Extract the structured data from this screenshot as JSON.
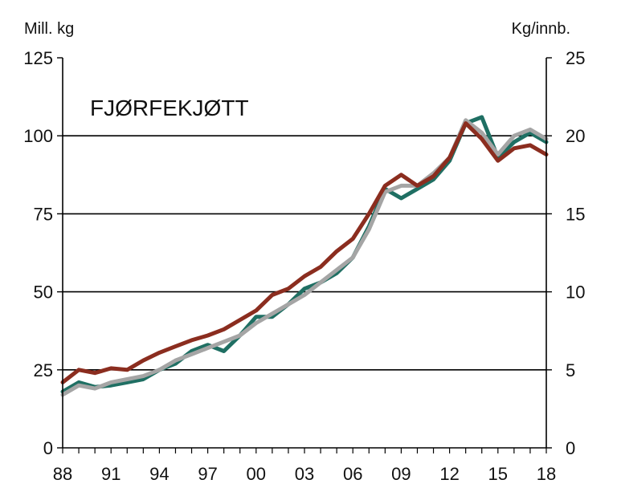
{
  "chart_data": {
    "type": "line",
    "title": "FJØRFEKJØTT",
    "left_axis_label": "Mill. kg",
    "right_axis_label": "Kg/innb.",
    "x_tick_labels": [
      "88",
      "91",
      "94",
      "97",
      "00",
      "03",
      "06",
      "09",
      "12",
      "15",
      "18"
    ],
    "x_tick_years": [
      1988,
      1991,
      1994,
      1997,
      2000,
      2003,
      2006,
      2009,
      2012,
      2015,
      2018
    ],
    "xlim": [
      1988,
      2018
    ],
    "left_ylim": [
      0,
      125
    ],
    "right_ylim": [
      0,
      25
    ],
    "left_y_ticks": [
      "0",
      "25",
      "50",
      "75",
      "100",
      "125"
    ],
    "right_y_ticks": [
      "0",
      "5",
      "10",
      "15",
      "20",
      "25"
    ],
    "grid": true,
    "series": [
      {
        "axis": "left",
        "color": "#1f6f63",
        "x": [
          1988,
          1989,
          1990,
          1991,
          1992,
          1993,
          1994,
          1995,
          1996,
          1997,
          1998,
          1999,
          2000,
          2001,
          2002,
          2003,
          2004,
          2005,
          2006,
          2007,
          2008,
          2009,
          2010,
          2011,
          2012,
          2013,
          2014,
          2015,
          2016,
          2017,
          2018
        ],
        "values": [
          18,
          21,
          19.5,
          20,
          21,
          22,
          25,
          27,
          31,
          33,
          31,
          36,
          42,
          42,
          46,
          51,
          53,
          56,
          61,
          71,
          83,
          80,
          83,
          86,
          92,
          104,
          106,
          93,
          98,
          101,
          98
        ]
      },
      {
        "axis": "left",
        "color": "#a5a5a5",
        "x": [
          1988,
          1989,
          1990,
          1991,
          1992,
          1993,
          1994,
          1995,
          1996,
          1997,
          1998,
          1999,
          2000,
          2001,
          2002,
          2003,
          2004,
          2005,
          2006,
          2007,
          2008,
          2009,
          2010,
          2011,
          2012,
          2013,
          2014,
          2015,
          2016,
          2017,
          2018
        ],
        "values": [
          17,
          20,
          19,
          21,
          22,
          23,
          25,
          28,
          30,
          32,
          34,
          36,
          40,
          43,
          46,
          49,
          53,
          57,
          61,
          70,
          82,
          84,
          84,
          88,
          93,
          105,
          101,
          94,
          100,
          102,
          99
        ]
      },
      {
        "axis": "left",
        "color": "#8b2d1f",
        "x": [
          1988,
          1989,
          1990,
          1991,
          1992,
          1993,
          1994,
          1995,
          1996,
          1997,
          1998,
          1999,
          2000,
          2001,
          2002,
          2003,
          2004,
          2005,
          2006,
          2007,
          2008,
          2009,
          2010,
          2011,
          2012,
          2013,
          2014,
          2015,
          2016,
          2017,
          2018
        ],
        "values": [
          21,
          25,
          24,
          25.5,
          25,
          28,
          30.5,
          32.5,
          34.5,
          36,
          38,
          41,
          44,
          49,
          51,
          55,
          58,
          63,
          67,
          75,
          84,
          87.5,
          84,
          87,
          93,
          104,
          99,
          92,
          96,
          97,
          94
        ]
      }
    ]
  }
}
